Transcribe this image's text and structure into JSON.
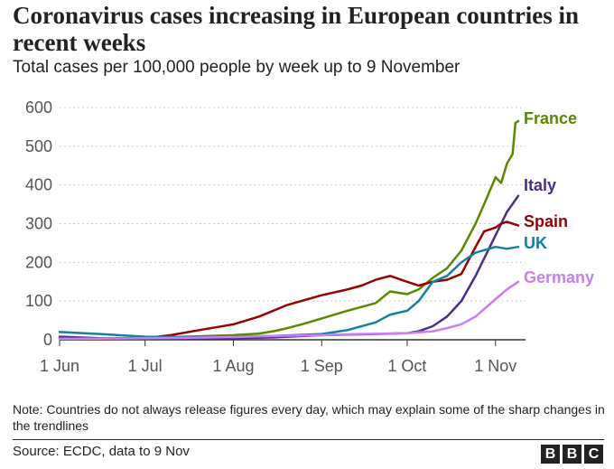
{
  "header": {
    "title": "Coronavirus cases increasing in European countries in recent weeks",
    "subtitle": "Total cases per 100,000 people by week up to 9 November"
  },
  "footer": {
    "note": "Note: Countries do not always release figures every day, which may explain some of the sharp changes in the trendlines",
    "source": "Source: ECDC, data to 9 Nov",
    "logo_letters": [
      "B",
      "B",
      "C"
    ]
  },
  "chart_data": {
    "type": "line",
    "title": "Coronavirus cases increasing in European countries in recent weeks",
    "subtitle": "Total cases per 100,000 people by week up to 9 November",
    "xlabel": "",
    "ylabel": "",
    "x_ticks": [
      "1 Jun",
      "1 Jul",
      "1 Aug",
      "1 Sep",
      "1 Oct",
      "1 Nov"
    ],
    "x_tick_dates": [
      "2020-06-01",
      "2020-07-01",
      "2020-08-01",
      "2020-09-01",
      "2020-10-01",
      "2020-11-01"
    ],
    "xlim": [
      "2020-06-01",
      "2020-11-09"
    ],
    "ylim": [
      0,
      600
    ],
    "y_ticks": [
      0,
      100,
      200,
      300,
      400,
      500,
      600
    ],
    "grid": "horizontal dotted",
    "legend": "direct labels at line ends",
    "series": [
      {
        "name": "France",
        "color": "#588a00",
        "x": [
          "2020-06-01",
          "2020-06-15",
          "2020-07-01",
          "2020-07-15",
          "2020-08-01",
          "2020-08-10",
          "2020-08-15",
          "2020-08-20",
          "2020-08-25",
          "2020-09-01",
          "2020-09-10",
          "2020-09-20",
          "2020-09-25",
          "2020-10-01",
          "2020-10-05",
          "2020-10-10",
          "2020-10-15",
          "2020-10-20",
          "2020-10-25",
          "2020-10-28",
          "2020-11-01",
          "2020-11-03",
          "2020-11-05",
          "2020-11-07",
          "2020-11-08",
          "2020-11-09"
        ],
        "y": [
          3,
          3,
          5,
          8,
          12,
          16,
          22,
          30,
          40,
          55,
          75,
          95,
          125,
          118,
          130,
          160,
          185,
          230,
          300,
          350,
          420,
          405,
          455,
          480,
          560,
          565
        ]
      },
      {
        "name": "Italy",
        "color": "#4b2d8a",
        "x": [
          "2020-06-01",
          "2020-06-15",
          "2020-07-01",
          "2020-07-15",
          "2020-08-01",
          "2020-08-15",
          "2020-09-01",
          "2020-09-15",
          "2020-10-01",
          "2020-10-05",
          "2020-10-10",
          "2020-10-15",
          "2020-10-20",
          "2020-10-25",
          "2020-11-01",
          "2020-11-05",
          "2020-11-09"
        ],
        "y": [
          8,
          4,
          3,
          3,
          4,
          6,
          12,
          14,
          17,
          22,
          35,
          60,
          100,
          165,
          270,
          330,
          372
        ]
      },
      {
        "name": "Spain",
        "color": "#990000",
        "x": [
          "2020-06-01",
          "2020-06-15",
          "2020-07-01",
          "2020-07-10",
          "2020-07-20",
          "2020-08-01",
          "2020-08-10",
          "2020-08-20",
          "2020-09-01",
          "2020-09-10",
          "2020-09-15",
          "2020-09-20",
          "2020-09-25",
          "2020-10-01",
          "2020-10-05",
          "2020-10-10",
          "2020-10-15",
          "2020-10-20",
          "2020-10-25",
          "2020-10-28",
          "2020-11-01",
          "2020-11-03",
          "2020-11-05",
          "2020-11-09"
        ],
        "y": [
          4,
          2,
          4,
          12,
          25,
          40,
          60,
          90,
          115,
          130,
          140,
          155,
          165,
          150,
          140,
          150,
          155,
          170,
          240,
          280,
          290,
          300,
          305,
          295
        ]
      },
      {
        "name": "UK",
        "color": "#1380a1",
        "x": [
          "2020-06-01",
          "2020-06-15",
          "2020-07-01",
          "2020-07-15",
          "2020-08-01",
          "2020-08-15",
          "2020-09-01",
          "2020-09-10",
          "2020-09-20",
          "2020-09-25",
          "2020-10-01",
          "2020-10-05",
          "2020-10-10",
          "2020-10-15",
          "2020-10-20",
          "2020-10-25",
          "2020-11-01",
          "2020-11-05",
          "2020-11-09"
        ],
        "y": [
          20,
          15,
          8,
          7,
          8,
          10,
          15,
          25,
          45,
          65,
          75,
          100,
          150,
          165,
          200,
          225,
          240,
          235,
          240
        ]
      },
      {
        "name": "Germany",
        "color": "#c97ff0",
        "x": [
          "2020-06-01",
          "2020-06-15",
          "2020-07-01",
          "2020-07-15",
          "2020-08-01",
          "2020-08-15",
          "2020-09-01",
          "2020-09-15",
          "2020-10-01",
          "2020-10-10",
          "2020-10-15",
          "2020-10-20",
          "2020-10-25",
          "2020-11-01",
          "2020-11-05",
          "2020-11-09"
        ],
        "y": [
          3,
          3,
          4,
          5,
          7,
          10,
          12,
          15,
          17,
          22,
          30,
          40,
          60,
          105,
          130,
          150
        ]
      }
    ]
  }
}
